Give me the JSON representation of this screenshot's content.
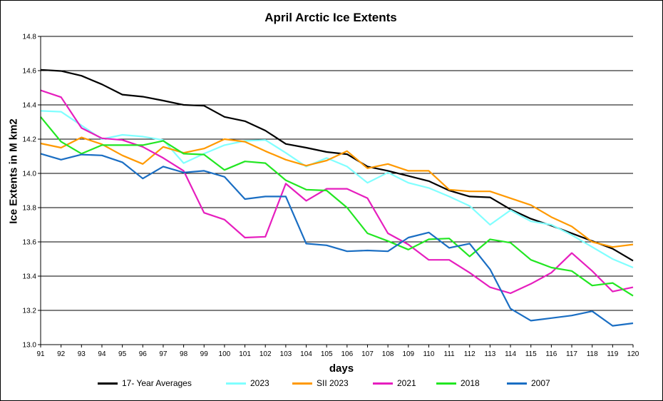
{
  "chart_data": {
    "type": "line",
    "title": "April Arctic Ice Extents",
    "xlabel": "days",
    "ylabel": "Ice Extents in M km2",
    "ylim": [
      13.0,
      14.8
    ],
    "ytick_labels": [
      "13.0",
      "13.2",
      "13.4",
      "13.6",
      "13.8",
      "14.0",
      "14.2",
      "14.4",
      "14.6",
      "14.8"
    ],
    "ytick_values": [
      13.0,
      13.2,
      13.4,
      13.6,
      13.8,
      14.0,
      14.2,
      14.4,
      14.6,
      14.8
    ],
    "categories": [
      "91",
      "92",
      "93",
      "94",
      "95",
      "96",
      "97",
      "98",
      "99",
      "100",
      "101",
      "102",
      "103",
      "104",
      "105",
      "106",
      "107",
      "108",
      "109",
      "110",
      "111",
      "112",
      "113",
      "114",
      "115",
      "116",
      "117",
      "118",
      "119",
      "120"
    ],
    "grid": true,
    "legend_position": "bottom",
    "series": [
      {
        "name": "17- Year Averages",
        "color": "#000000",
        "values": [
          14.605,
          14.598,
          14.57,
          14.52,
          14.46,
          14.448,
          14.425,
          14.4,
          14.395,
          14.33,
          14.305,
          14.25,
          14.172,
          14.15,
          14.125,
          14.112,
          14.04,
          14.015,
          13.985,
          13.955,
          13.9,
          13.865,
          13.86,
          13.79,
          13.735,
          13.695,
          13.65,
          13.605,
          13.56,
          13.49
        ]
      },
      {
        "name": "2023",
        "color": "#80ffff",
        "values": [
          14.365,
          14.36,
          14.28,
          14.2,
          14.225,
          14.215,
          14.195,
          14.06,
          14.115,
          14.165,
          14.19,
          14.195,
          14.12,
          14.04,
          14.09,
          14.04,
          13.945,
          14.005,
          13.945,
          13.915,
          13.865,
          13.81,
          13.7,
          13.785,
          13.72,
          13.7,
          13.64,
          13.57,
          13.5,
          13.45
        ]
      },
      {
        "name": "SII 2023",
        "color": "#ff9900",
        "values": [
          14.175,
          14.15,
          14.21,
          14.17,
          14.105,
          14.055,
          14.155,
          14.12,
          14.145,
          14.2,
          14.185,
          14.13,
          14.08,
          14.045,
          14.075,
          14.13,
          14.03,
          14.055,
          14.015,
          14.015,
          13.905,
          13.895,
          13.895,
          13.855,
          13.815,
          13.745,
          13.69,
          13.6,
          13.57,
          13.585
        ]
      },
      {
        "name": "2021",
        "color": "#e61ebe",
        "values": [
          14.485,
          14.445,
          14.265,
          14.205,
          14.195,
          14.155,
          14.09,
          14.015,
          13.77,
          13.73,
          13.625,
          13.63,
          13.94,
          13.84,
          13.91,
          13.91,
          13.855,
          13.65,
          13.585,
          13.495,
          13.495,
          13.42,
          13.335,
          13.3,
          13.355,
          13.42,
          13.535,
          13.43,
          13.31,
          13.335
        ]
      },
      {
        "name": "2018",
        "color": "#22e622",
        "values": [
          14.33,
          14.185,
          14.115,
          14.165,
          14.165,
          14.165,
          14.19,
          14.115,
          14.11,
          14.02,
          14.07,
          14.06,
          13.96,
          13.905,
          13.9,
          13.8,
          13.65,
          13.605,
          13.555,
          13.615,
          13.62,
          13.515,
          13.615,
          13.595,
          13.495,
          13.45,
          13.43,
          13.345,
          13.36,
          13.285
        ]
      },
      {
        "name": "2007",
        "color": "#1a6ec3",
        "values": [
          14.115,
          14.08,
          14.11,
          14.105,
          14.065,
          13.97,
          14.04,
          14.005,
          14.015,
          13.98,
          13.85,
          13.865,
          13.865,
          13.59,
          13.58,
          13.545,
          13.55,
          13.545,
          13.625,
          13.655,
          13.565,
          13.59,
          13.44,
          13.21,
          13.14,
          13.155,
          13.17,
          13.195,
          13.11,
          13.125
        ]
      }
    ]
  }
}
